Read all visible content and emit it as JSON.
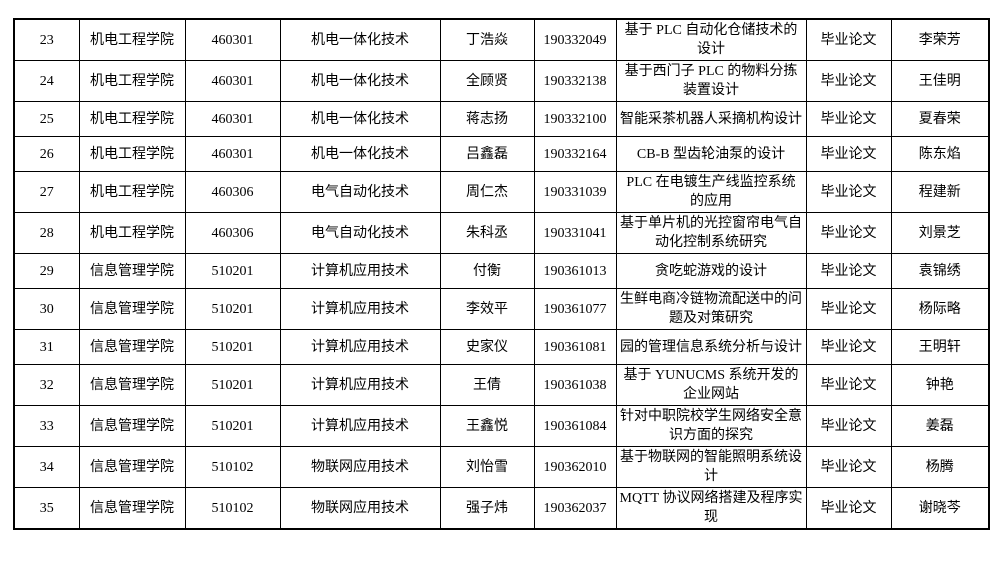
{
  "colors": {
    "text": "#000000",
    "border": "#000000",
    "background": "#ffffff"
  },
  "table": {
    "rows": [
      [
        "23",
        "机电工程学院",
        "460301",
        "机电一体化技术",
        "丁浩焱",
        "190332049",
        "基于 PLC 自动化仓储技术的设计",
        "毕业论文",
        "李荣芳"
      ],
      [
        "24",
        "机电工程学院",
        "460301",
        "机电一体化技术",
        "全顾贤",
        "190332138",
        "基于西门子 PLC 的物料分拣装置设计",
        "毕业论文",
        "王佳明"
      ],
      [
        "25",
        "机电工程学院",
        "460301",
        "机电一体化技术",
        "蒋志扬",
        "190332100",
        "智能采茶机器人采摘机构设计",
        "毕业论文",
        "夏春荣"
      ],
      [
        "26",
        "机电工程学院",
        "460301",
        "机电一体化技术",
        "吕鑫磊",
        "190332164",
        "CB-B 型齿轮油泵的设计",
        "毕业论文",
        "陈东焰"
      ],
      [
        "27",
        "机电工程学院",
        "460306",
        "电气自动化技术",
        "周仁杰",
        "190331039",
        "PLC 在电镀生产线监控系统的应用",
        "毕业论文",
        "程建新"
      ],
      [
        "28",
        "机电工程学院",
        "460306",
        "电气自动化技术",
        "朱科丞",
        "190331041",
        "基于单片机的光控窗帘电气自动化控制系统研究",
        "毕业论文",
        "刘景芝"
      ],
      [
        "29",
        "信息管理学院",
        "510201",
        "计算机应用技术",
        "付衡",
        "190361013",
        "贪吃蛇游戏的设计",
        "毕业论文",
        "袁锦绣"
      ],
      [
        "30",
        "信息管理学院",
        "510201",
        "计算机应用技术",
        "李效平",
        "190361077",
        "生鲜电商冷链物流配送中的问题及对策研究",
        "毕业论文",
        "杨际略"
      ],
      [
        "31",
        "信息管理学院",
        "510201",
        "计算机应用技术",
        "史家仪",
        "190361081",
        "园的管理信息系统分析与设计",
        "毕业论文",
        "王明轩"
      ],
      [
        "32",
        "信息管理学院",
        "510201",
        "计算机应用技术",
        "王倩",
        "190361038",
        "基于 YUNUCMS 系统开发的企业网站",
        "毕业论文",
        "钟艳"
      ],
      [
        "33",
        "信息管理学院",
        "510201",
        "计算机应用技术",
        "王鑫悦",
        "190361084",
        "针对中职院校学生网络安全意识方面的探究",
        "毕业论文",
        "姜磊"
      ],
      [
        "34",
        "信息管理学院",
        "510102",
        "物联网应用技术",
        "刘怡雪",
        "190362010",
        "基于物联网的智能照明系统设计",
        "毕业论文",
        "杨腾"
      ],
      [
        "35",
        "信息管理学院",
        "510102",
        "物联网应用技术",
        "强子炜",
        "190362037",
        "MQTT 协议网络搭建及程序实现",
        "毕业论文",
        "谢晓芩"
      ]
    ]
  }
}
